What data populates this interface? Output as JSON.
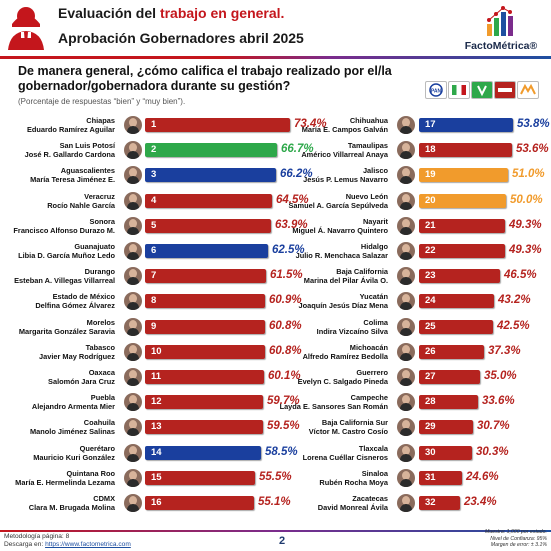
{
  "header": {
    "title_prefix": "Evaluación del ",
    "title_highlight": "trabajo en general.",
    "subtitle": "Aprobación Gobernadores abril 2025",
    "brand": "FactoMétrica®"
  },
  "question": "De manera general, ¿cómo califica el trabajo realizado por el/la gobernador/gobernadora durante su gestión?",
  "subnote": "(Porcentaje de respuestas “bien” y “muy bien”).",
  "party_logos": [
    "pan-logo",
    "pri-logo",
    "pvem-logo",
    "morena-logo",
    "mc-logo"
  ],
  "colors": {
    "morena": "#b5231f",
    "pan": "#1a3f9e",
    "pvem": "#2ea84a",
    "mc": "#f19b2c",
    "value_morena": "#b5231f",
    "value_pan": "#1a3f9e",
    "value_pvem": "#2ea84a",
    "value_mc": "#f19b2c"
  },
  "chart_data": {
    "type": "bar",
    "unit": "%",
    "xlim": [
      0,
      100
    ],
    "grid": false,
    "items": [
      {
        "rank": "1",
        "state": "Chiapas",
        "governor": "Eduardo Ramírez Aguilar",
        "value": 73.4,
        "label": "73.4%",
        "party": "morena"
      },
      {
        "rank": "2",
        "state": "San Luis Potosí",
        "governor": "José R. Gallardo Cardona",
        "value": 66.7,
        "label": "66.7%",
        "party": "pvem"
      },
      {
        "rank": "3",
        "state": "Aguascalientes",
        "governor": "María Teresa Jiménez E.",
        "value": 66.2,
        "label": "66.2%",
        "party": "pan"
      },
      {
        "rank": "4",
        "state": "Veracruz",
        "governor": "Rocío Nahle García",
        "value": 64.5,
        "label": "64.5%",
        "party": "morena"
      },
      {
        "rank": "5",
        "state": "Sonora",
        "governor": "Francisco Alfonso Durazo M.",
        "value": 63.9,
        "label": "63.9%",
        "party": "morena"
      },
      {
        "rank": "6",
        "state": "Guanajuato",
        "governor": "Libia D. García Muñoz Ledo",
        "value": 62.5,
        "label": "62.5%",
        "party": "pan"
      },
      {
        "rank": "7",
        "state": "Durango",
        "governor": "Esteban A. Villegas Villarreal",
        "value": 61.5,
        "label": "61.5%",
        "party": "morena"
      },
      {
        "rank": "8",
        "state": "Estado de México",
        "governor": "Delfina Gómez Álvarez",
        "value": 60.9,
        "label": "60.9%",
        "party": "morena"
      },
      {
        "rank": "9",
        "state": "Morelos",
        "governor": "Margarita González Saravia",
        "value": 60.8,
        "label": "60.8%",
        "party": "morena"
      },
      {
        "rank": "10",
        "state": "Tabasco",
        "governor": "Javier May Rodríguez",
        "value": 60.8,
        "label": "60.8%",
        "party": "morena"
      },
      {
        "rank": "11",
        "state": "Oaxaca",
        "governor": "Salomón Jara Cruz",
        "value": 60.1,
        "label": "60.1%",
        "party": "morena"
      },
      {
        "rank": "12",
        "state": "Puebla",
        "governor": "Alejandro Armenta Mier",
        "value": 59.7,
        "label": "59.7%",
        "party": "morena"
      },
      {
        "rank": "13",
        "state": "Coahuila",
        "governor": "Manolo Jiménez Salinas",
        "value": 59.5,
        "label": "59.5%",
        "party": "morena"
      },
      {
        "rank": "14",
        "state": "Querétaro",
        "governor": "Mauricio Kuri González",
        "value": 58.5,
        "label": "58.5%",
        "party": "pan"
      },
      {
        "rank": "15",
        "state": "Quintana Roo",
        "governor": "María E. Hermelinda Lezama",
        "value": 55.5,
        "label": "55.5%",
        "party": "morena"
      },
      {
        "rank": "16",
        "state": "CDMX",
        "governor": "Clara M. Brugada Molina",
        "value": 55.1,
        "label": "55.1%",
        "party": "morena"
      },
      {
        "rank": "17",
        "state": "Chihuahua",
        "governor": "María E. Campos Galván",
        "value": 53.8,
        "label": "53.8%",
        "party": "pan"
      },
      {
        "rank": "18",
        "state": "Tamaulipas",
        "governor": "Américo Villarreal Anaya",
        "value": 53.6,
        "label": "53.6%",
        "party": "morena"
      },
      {
        "rank": "19",
        "state": "Jalisco",
        "governor": "Jesús P. Lemus Navarro",
        "value": 51.0,
        "label": "51.0%",
        "party": "mc"
      },
      {
        "rank": "20",
        "state": "Nuevo León",
        "governor": "Samuel A. García Sepúlveda",
        "value": 50.0,
        "label": "50.0%",
        "party": "mc"
      },
      {
        "rank": "21",
        "state": "Nayarit",
        "governor": "Miguel Á. Navarro Quintero",
        "value": 49.3,
        "label": "49.3%",
        "party": "morena"
      },
      {
        "rank": "22",
        "state": "Hidalgo",
        "governor": "Julio R. Menchaca Salazar",
        "value": 49.3,
        "label": "49.3%",
        "party": "morena"
      },
      {
        "rank": "23",
        "state": "Baja California",
        "governor": "Marina del Pilar Ávila O.",
        "value": 46.5,
        "label": "46.5%",
        "party": "morena"
      },
      {
        "rank": "24",
        "state": "Yucatán",
        "governor": "Joaquín Jesús Díaz Mena",
        "value": 43.2,
        "label": "43.2%",
        "party": "morena"
      },
      {
        "rank": "25",
        "state": "Colima",
        "governor": "Indira Vizcaíno Silva",
        "value": 42.5,
        "label": "42.5%",
        "party": "morena"
      },
      {
        "rank": "26",
        "state": "Michoacán",
        "governor": "Alfredo Ramírez Bedolla",
        "value": 37.3,
        "label": "37.3%",
        "party": "morena"
      },
      {
        "rank": "27",
        "state": "Guerrero",
        "governor": "Evelyn C. Salgado Pineda",
        "value": 35.0,
        "label": "35.0%",
        "party": "morena"
      },
      {
        "rank": "28",
        "state": "Campeche",
        "governor": "Layda E. Sansores San Román",
        "value": 33.6,
        "label": "33.6%",
        "party": "morena"
      },
      {
        "rank": "29",
        "state": "Baja California Sur",
        "governor": "Víctor M. Castro Cosío",
        "value": 30.7,
        "label": "30.7%",
        "party": "morena"
      },
      {
        "rank": "30",
        "state": "Tlaxcala",
        "governor": "Lorena Cuéllar Cisneros",
        "value": 30.3,
        "label": "30.3%",
        "party": "morena"
      },
      {
        "rank": "31",
        "state": "Sinaloa",
        "governor": "Rubén Rocha Moya",
        "value": 24.6,
        "label": "24.6%",
        "party": "morena"
      },
      {
        "rank": "32",
        "state": "Zacatecas",
        "governor": "David Monreal Ávila",
        "value": 23.4,
        "label": "23.4%",
        "party": "morena"
      }
    ]
  },
  "footer": {
    "methodology": "Metodología página: 8",
    "download_prefix": "Descarga en: ",
    "download_link": "https://www.factometrica.com",
    "page": "2",
    "sample": "Muestra: 1,000 por estado.",
    "confidence": "Nivel de Confianza: 95%",
    "margin": "Margen de error: ± 3.1%"
  }
}
